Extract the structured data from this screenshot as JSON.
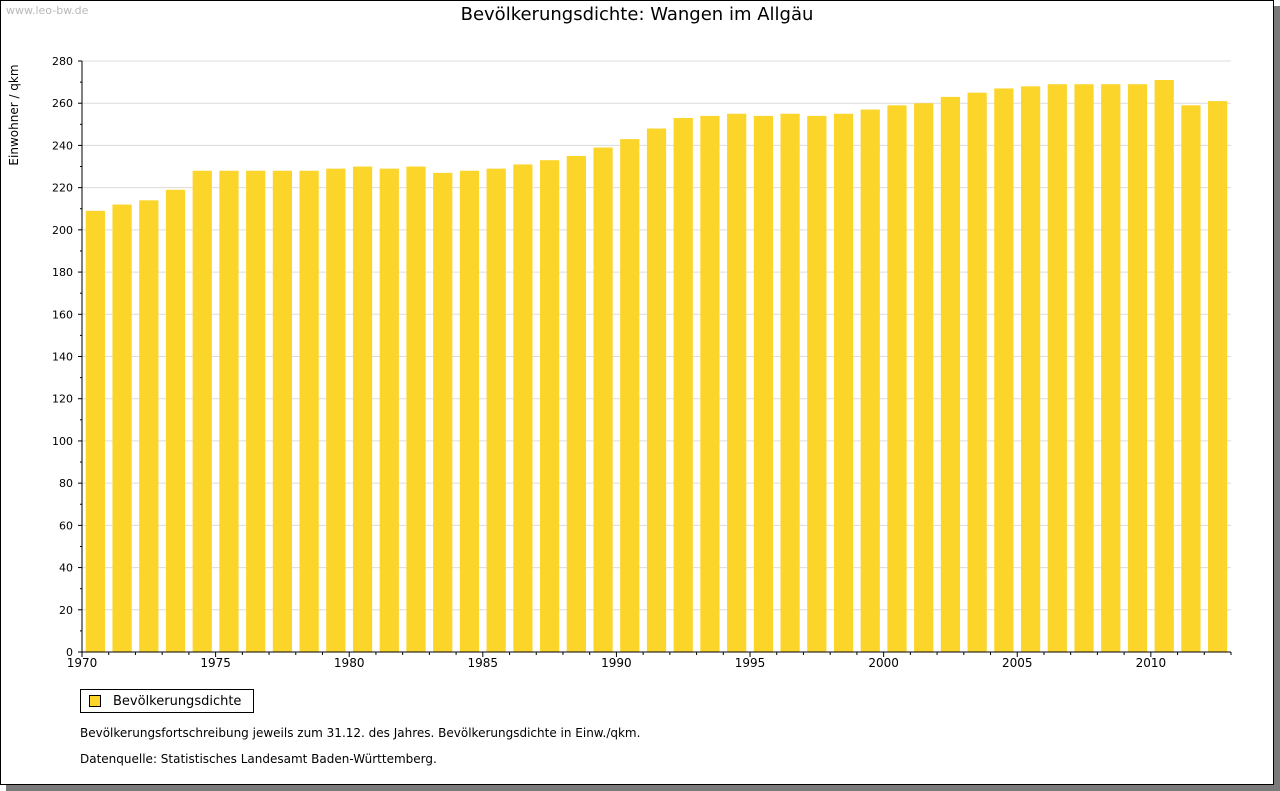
{
  "watermark": "www.leo-bw.de",
  "chart_data": {
    "type": "bar",
    "title": "Bevölkerungsdichte: Wangen im Allgäu",
    "xlabel": "",
    "ylabel": "Einwohner / qkm",
    "ylim": [
      0,
      280
    ],
    "yticks": [
      0,
      20,
      40,
      60,
      80,
      100,
      120,
      140,
      160,
      180,
      200,
      220,
      240,
      260,
      280
    ],
    "xtick_labels": [
      "1970",
      "1975",
      "1980",
      "1985",
      "1990",
      "1995",
      "2000",
      "2005",
      "2010"
    ],
    "categories": [
      1970,
      1971,
      1972,
      1973,
      1974,
      1975,
      1976,
      1977,
      1978,
      1979,
      1980,
      1981,
      1982,
      1983,
      1984,
      1985,
      1986,
      1987,
      1988,
      1989,
      1990,
      1991,
      1992,
      1993,
      1994,
      1995,
      1996,
      1997,
      1998,
      1999,
      2000,
      2001,
      2002,
      2003,
      2004,
      2005,
      2006,
      2007,
      2008,
      2009,
      2010,
      2011,
      2012
    ],
    "series": [
      {
        "name": "Bevölkerungsdichte",
        "color": "#fcd52b",
        "values": [
          209,
          212,
          214,
          219,
          228,
          228,
          228,
          228,
          228,
          229,
          230,
          229,
          230,
          227,
          228,
          229,
          231,
          233,
          235,
          239,
          243,
          248,
          253,
          254,
          255,
          254,
          255,
          254,
          255,
          257,
          259,
          260,
          263,
          265,
          267,
          268,
          269,
          269,
          269,
          269,
          271,
          259,
          261
        ]
      }
    ],
    "grid": true,
    "legend_position": "bottom-left"
  },
  "notes": {
    "line1": "Bevölkerungsfortschreibung jeweils zum 31.12. des Jahres. Bevölkerungsdichte in Einw./qkm.",
    "line2": "Datenquelle: Statistisches Landesamt Baden-Württemberg."
  }
}
